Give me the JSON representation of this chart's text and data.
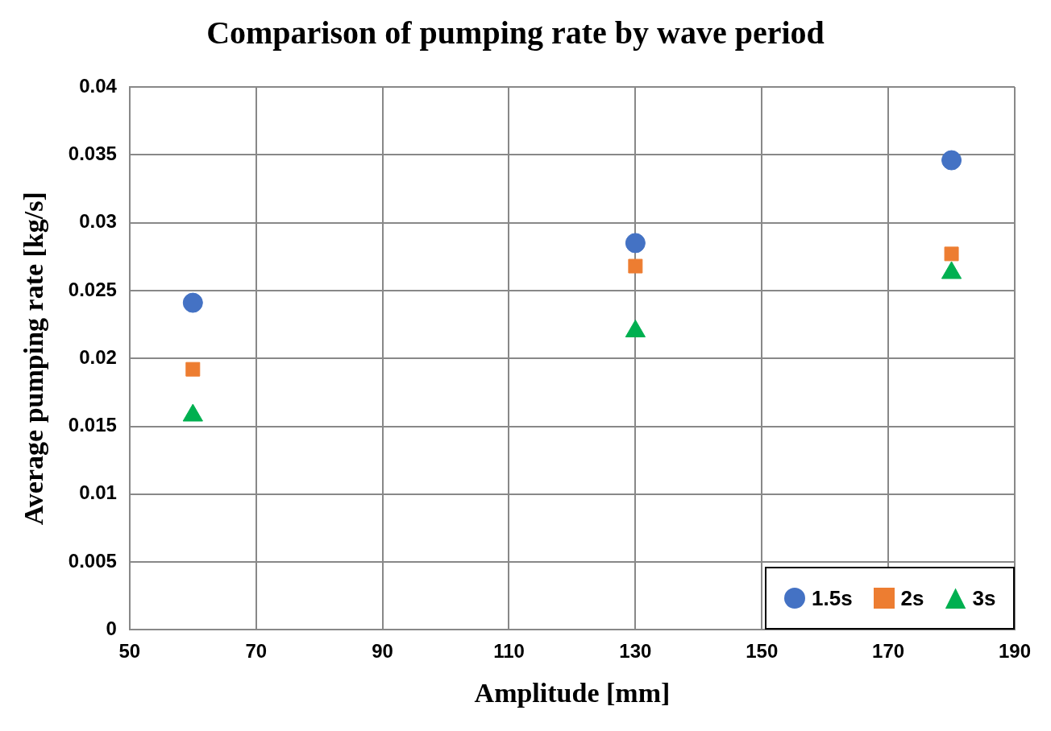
{
  "chart_data": {
    "type": "scatter",
    "title": "Comparison of pumping rate by wave period",
    "xlabel": "Amplitude [mm]",
    "ylabel": "Average pumping rate [kg/s]",
    "x": [
      60,
      130,
      180
    ],
    "series": [
      {
        "name": "1.5s",
        "color": "#4472c4",
        "marker": "circle",
        "values": [
          0.0241,
          0.0285,
          0.0346
        ]
      },
      {
        "name": "2s",
        "color": "#ed7d31",
        "marker": "square",
        "values": [
          0.0192,
          0.0268,
          0.0277
        ]
      },
      {
        "name": "3s",
        "color": "#00b050",
        "marker": "triangle",
        "values": [
          0.0158,
          0.022,
          0.0263
        ]
      }
    ],
    "xlim": [
      50,
      190
    ],
    "xticks": [
      50,
      70,
      90,
      110,
      130,
      150,
      170,
      190
    ],
    "ylim": [
      0,
      0.04
    ],
    "yticks": [
      0,
      0.005,
      0.01,
      0.015,
      0.02,
      0.025,
      0.03,
      0.035,
      0.04
    ],
    "grid": true,
    "legend": "bottom right"
  }
}
